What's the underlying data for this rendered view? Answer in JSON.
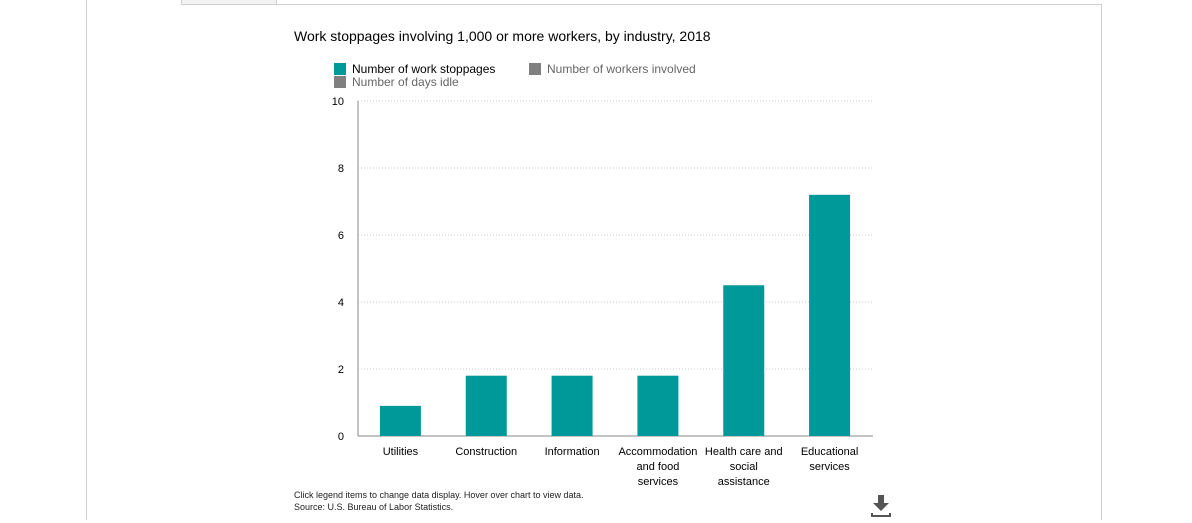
{
  "chart_data": {
    "type": "bar",
    "title": "Work stoppages involving 1,000 or more workers, by industry, 2018",
    "categories": [
      [
        "Utilities"
      ],
      [
        "Construction"
      ],
      [
        "Information"
      ],
      [
        "Accommodation",
        "and food",
        "services"
      ],
      [
        "Health care and",
        "social",
        "assistance"
      ],
      [
        "Educational",
        "services"
      ]
    ],
    "series": [
      {
        "name": "Number of work stoppages",
        "values": [
          1,
          2,
          2,
          2,
          5,
          8
        ],
        "color": "#009999"
      }
    ],
    "y_ticks": [
      "0",
      "2",
      "4",
      "6",
      "8",
      "10"
    ],
    "ylim": [
      0,
      10
    ],
    "xlabel": "",
    "ylabel": "",
    "grid": true,
    "legend": "top-left"
  },
  "legend": {
    "items": [
      {
        "label": "Number of work stoppages",
        "color": "#009999",
        "text_color": "#000000"
      },
      {
        "label": "Number of workers involved",
        "color": "#808080",
        "text_color": "#666666"
      },
      {
        "label": "Number of days idle",
        "color": "#808080",
        "text_color": "#666666"
      }
    ]
  },
  "footer": {
    "note": "Click legend items to change data display. Hover over chart to view data.",
    "source": "Source: U.S. Bureau of Labor Statistics."
  },
  "icons": {
    "download": "download-icon"
  },
  "colors": {
    "bar": "#009999",
    "grid": "#c8c8c8",
    "axis": "#8a8a8a"
  }
}
